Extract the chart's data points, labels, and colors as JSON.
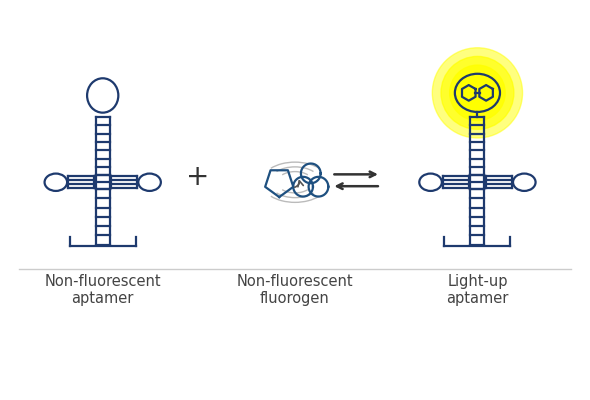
{
  "bg_color": "#ffffff",
  "aptamer_color": "#1e3a6e",
  "fluorogen_color": "#1e5080",
  "vibration_color": "#aaaaaa",
  "arrow_color": "#333333",
  "label_color": "#444444",
  "glow_color": "#ffff00",
  "glow_color2": "#ffee00",
  "label1": "Non-fluorescent\naptamer",
  "label2": "Non-fluorescent\nfluorogen",
  "label3": "Light-up\naptamer",
  "plus_symbol": "+",
  "label_fontsize": 10.5,
  "separator_color": "#cccccc",
  "lw": 1.6
}
